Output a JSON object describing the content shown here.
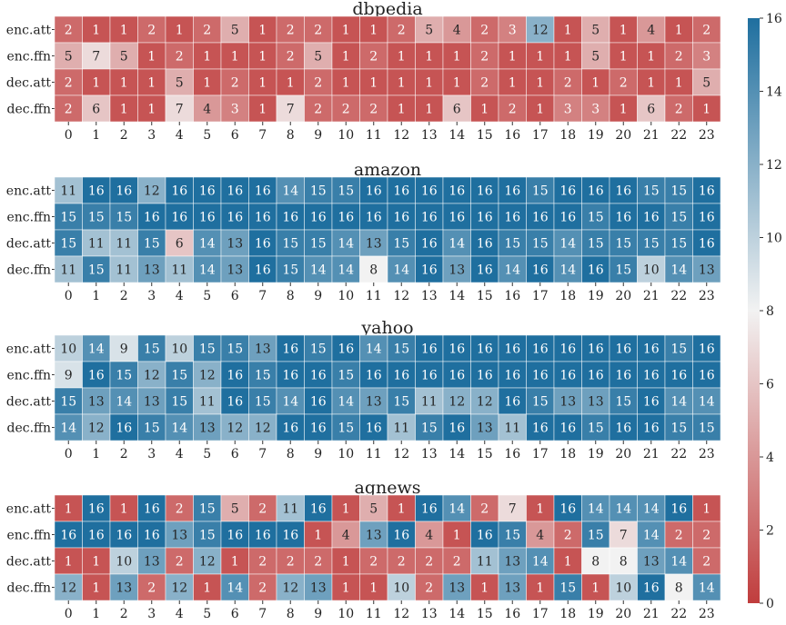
{
  "chart_data": {
    "type": "heatmap",
    "x_categories": [
      "0",
      "1",
      "2",
      "3",
      "4",
      "5",
      "6",
      "7",
      "8",
      "9",
      "10",
      "11",
      "12",
      "13",
      "14",
      "15",
      "16",
      "17",
      "18",
      "19",
      "20",
      "21",
      "22",
      "23"
    ],
    "y_categories": [
      "enc.att",
      "enc.ffn",
      "dec.att",
      "dec.ffn"
    ],
    "colorbar": {
      "min": 0,
      "max": 16,
      "ticks": [
        0,
        2,
        4,
        6,
        8,
        10,
        12,
        14,
        16
      ],
      "low_color": "#c03d3d",
      "mid_color": "#f2f2f2",
      "high_color": "#1f6f9f"
    },
    "panels": [
      {
        "title": "dbpedia",
        "values": [
          [
            2,
            1,
            1,
            2,
            1,
            2,
            5,
            1,
            2,
            2,
            1,
            1,
            2,
            5,
            4,
            2,
            3,
            12,
            1,
            5,
            1,
            4,
            1,
            2
          ],
          [
            5,
            7,
            5,
            1,
            2,
            1,
            1,
            1,
            2,
            5,
            1,
            2,
            1,
            1,
            1,
            2,
            1,
            1,
            1,
            5,
            1,
            1,
            2,
            3
          ],
          [
            2,
            1,
            1,
            1,
            5,
            1,
            2,
            1,
            1,
            2,
            1,
            1,
            1,
            1,
            1,
            2,
            1,
            1,
            2,
            1,
            2,
            1,
            1,
            5
          ],
          [
            2,
            6,
            1,
            1,
            7,
            4,
            3,
            1,
            7,
            2,
            2,
            2,
            1,
            1,
            6,
            1,
            2,
            1,
            3,
            3,
            1,
            6,
            2,
            1
          ]
        ]
      },
      {
        "title": "amazon",
        "values": [
          [
            11,
            16,
            16,
            12,
            16,
            16,
            16,
            16,
            14,
            15,
            15,
            16,
            16,
            16,
            16,
            16,
            16,
            15,
            16,
            16,
            16,
            15,
            15,
            16
          ],
          [
            15,
            15,
            15,
            16,
            16,
            16,
            16,
            16,
            16,
            16,
            16,
            16,
            16,
            16,
            16,
            16,
            16,
            16,
            16,
            15,
            16,
            16,
            15,
            16
          ],
          [
            15,
            11,
            11,
            15,
            6,
            14,
            13,
            16,
            15,
            15,
            14,
            13,
            15,
            16,
            14,
            16,
            15,
            15,
            14,
            15,
            15,
            15,
            15,
            16
          ],
          [
            11,
            15,
            11,
            13,
            11,
            14,
            13,
            16,
            15,
            14,
            14,
            8,
            14,
            16,
            13,
            16,
            14,
            16,
            14,
            16,
            15,
            10,
            14,
            13
          ]
        ]
      },
      {
        "title": "yahoo",
        "values": [
          [
            10,
            14,
            9,
            15,
            10,
            15,
            15,
            13,
            16,
            15,
            16,
            14,
            15,
            16,
            16,
            16,
            16,
            16,
            16,
            16,
            16,
            16,
            15,
            16
          ],
          [
            9,
            16,
            15,
            12,
            15,
            12,
            16,
            15,
            16,
            16,
            15,
            16,
            16,
            16,
            16,
            16,
            16,
            16,
            16,
            16,
            16,
            16,
            16,
            16
          ],
          [
            15,
            13,
            14,
            13,
            15,
            11,
            16,
            15,
            14,
            16,
            14,
            13,
            15,
            11,
            12,
            12,
            16,
            15,
            13,
            13,
            15,
            16,
            14,
            14
          ],
          [
            14,
            12,
            16,
            15,
            14,
            13,
            12,
            12,
            16,
            16,
            15,
            16,
            11,
            15,
            16,
            13,
            11,
            16,
            16,
            15,
            16,
            16,
            15,
            15
          ]
        ]
      },
      {
        "title": "agnews",
        "values": [
          [
            1,
            16,
            1,
            16,
            2,
            15,
            5,
            2,
            11,
            16,
            1,
            5,
            1,
            16,
            14,
            2,
            7,
            1,
            16,
            14,
            14,
            14,
            16,
            1
          ],
          [
            16,
            16,
            16,
            16,
            13,
            15,
            16,
            16,
            16,
            1,
            4,
            13,
            16,
            4,
            1,
            16,
            15,
            4,
            2,
            15,
            7,
            14,
            2,
            2
          ],
          [
            1,
            1,
            10,
            13,
            2,
            12,
            1,
            2,
            2,
            2,
            1,
            2,
            2,
            2,
            2,
            11,
            13,
            14,
            1,
            8,
            8,
            13,
            14,
            2
          ],
          [
            12,
            1,
            13,
            2,
            12,
            1,
            14,
            2,
            12,
            13,
            1,
            1,
            10,
            2,
            13,
            1,
            13,
            1,
            15,
            1,
            10,
            16,
            8,
            14
          ]
        ]
      }
    ]
  }
}
